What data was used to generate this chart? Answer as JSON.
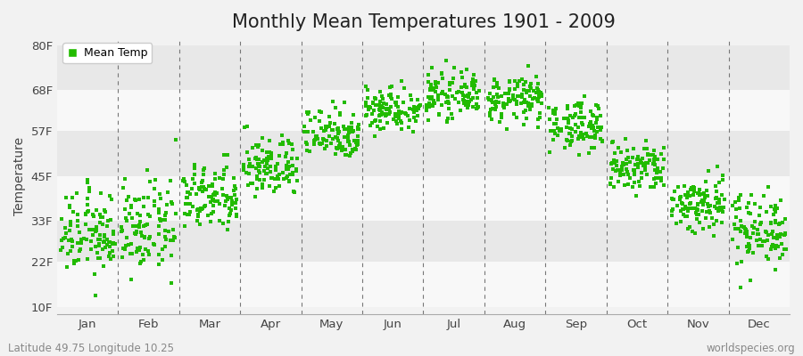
{
  "title": "Monthly Mean Temperatures 1901 - 2009",
  "ylabel": "Temperature",
  "month_labels": [
    "Jan",
    "Feb",
    "Mar",
    "Apr",
    "May",
    "Jun",
    "Jul",
    "Aug",
    "Sep",
    "Oct",
    "Nov",
    "Dec"
  ],
  "yticks": [
    10,
    22,
    33,
    45,
    57,
    68,
    80
  ],
  "ytick_labels": [
    "10F",
    "22F",
    "33F",
    "45F",
    "57F",
    "68F",
    "80F"
  ],
  "ylim": [
    8,
    82
  ],
  "xlim": [
    0,
    12
  ],
  "dot_color": "#22bb00",
  "dot_size": 5,
  "legend_label": "Mean Temp",
  "bg_color": "#f2f2f2",
  "band_colors": [
    "#f8f8f8",
    "#e8e8e8",
    "#f8f8f8",
    "#e8e8e8",
    "#f8f8f8",
    "#e8e8e8"
  ],
  "monthly_mean_F": [
    29.5,
    31.0,
    39.0,
    47.5,
    56.5,
    63.0,
    66.5,
    65.5,
    58.5,
    47.0,
    37.5,
    31.0
  ],
  "monthly_std_F": [
    5.5,
    6.0,
    4.5,
    4.0,
    3.5,
    3.0,
    2.8,
    3.0,
    3.2,
    3.5,
    4.0,
    5.0
  ],
  "n_years": 109,
  "footer_left": "Latitude 49.75 Longitude 10.25",
  "footer_right": "worldspecies.org",
  "title_fontsize": 15,
  "axis_fontsize": 10,
  "tick_fontsize": 9.5,
  "footer_fontsize": 8.5,
  "vline_color": "#777777",
  "vline_positions": [
    1,
    2,
    3,
    4,
    5,
    6,
    7,
    8,
    9,
    10,
    11
  ]
}
